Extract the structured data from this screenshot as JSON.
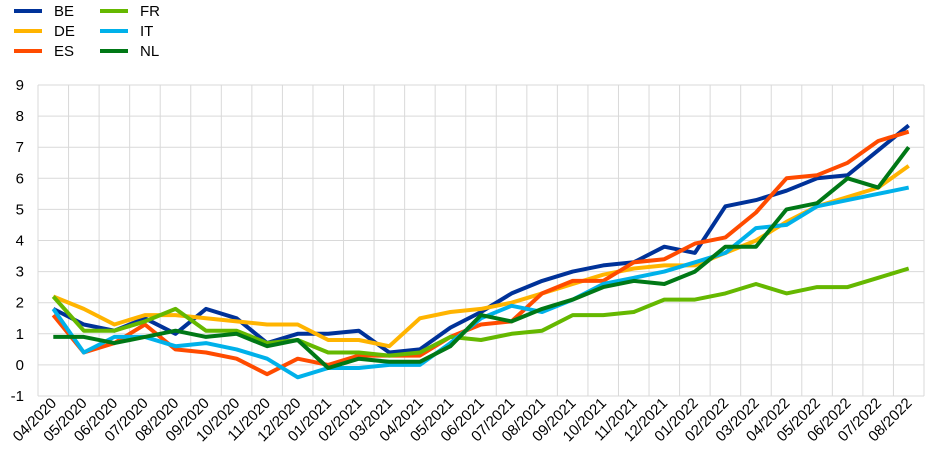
{
  "chart_data": {
    "type": "line",
    "title": "",
    "xlabel": "",
    "ylabel": "",
    "ylim": [
      -1,
      9
    ],
    "yticks": [
      -1,
      0,
      1,
      2,
      3,
      4,
      5,
      6,
      7,
      8,
      9
    ],
    "grid": true,
    "legend_position": "top-left",
    "categories": [
      "04/2020",
      "05/2020",
      "06/2020",
      "07/2020",
      "08/2020",
      "09/2020",
      "10/2020",
      "11/2020",
      "12/2020",
      "01/2021",
      "02/2021",
      "03/2021",
      "04/2021",
      "05/2021",
      "06/2021",
      "07/2021",
      "08/2021",
      "09/2021",
      "10/2021",
      "11/2021",
      "12/2021",
      "01/2022",
      "02/2022",
      "03/2022",
      "04/2022",
      "05/2022",
      "06/2022",
      "07/2022",
      "08/2022"
    ],
    "series": [
      {
        "name": "BE",
        "color": "#003299",
        "values": [
          1.8,
          1.3,
          1.1,
          1.5,
          1.0,
          1.8,
          1.5,
          0.7,
          1.0,
          1.0,
          1.1,
          0.4,
          0.5,
          1.2,
          1.7,
          2.3,
          2.7,
          3.0,
          3.2,
          3.3,
          3.8,
          3.6,
          5.1,
          5.3,
          5.6,
          6.0,
          6.1,
          6.9,
          7.7
        ]
      },
      {
        "name": "DE",
        "color": "#FFB400",
        "values": [
          2.2,
          1.8,
          1.3,
          1.6,
          1.6,
          1.5,
          1.4,
          1.3,
          1.3,
          0.8,
          0.8,
          0.6,
          1.5,
          1.7,
          1.8,
          2.0,
          2.3,
          2.6,
          2.9,
          3.1,
          3.2,
          3.2,
          3.6,
          4.0,
          4.6,
          5.1,
          5.4,
          5.7,
          6.4
        ]
      },
      {
        "name": "ES",
        "color": "#FF4B00",
        "values": [
          1.6,
          0.4,
          0.7,
          1.3,
          0.5,
          0.4,
          0.2,
          -0.3,
          0.2,
          0.0,
          0.3,
          0.3,
          0.3,
          0.9,
          1.3,
          1.4,
          2.3,
          2.7,
          2.7,
          3.3,
          3.4,
          3.9,
          4.1,
          4.9,
          6.0,
          6.1,
          6.5,
          7.2,
          7.5
        ]
      },
      {
        "name": "FR",
        "color": "#65B800",
        "values": [
          2.2,
          1.1,
          1.1,
          1.4,
          1.8,
          1.1,
          1.1,
          0.7,
          0.8,
          0.4,
          0.4,
          0.3,
          0.4,
          0.9,
          0.8,
          1.0,
          1.1,
          1.6,
          1.6,
          1.7,
          2.1,
          2.1,
          2.3,
          2.6,
          2.3,
          2.5,
          2.5,
          2.8,
          3.1
        ]
      },
      {
        "name": "IT",
        "color": "#00B1EA",
        "values": [
          1.8,
          0.4,
          0.9,
          0.9,
          0.6,
          0.7,
          0.5,
          0.2,
          -0.4,
          -0.1,
          -0.1,
          0.0,
          0.0,
          0.7,
          1.5,
          1.9,
          1.7,
          2.1,
          2.6,
          2.8,
          3.0,
          3.3,
          3.6,
          4.4,
          4.5,
          5.1,
          5.3,
          5.5,
          5.7
        ]
      },
      {
        "name": "NL",
        "color": "#007816",
        "values": [
          0.9,
          0.9,
          0.7,
          0.9,
          1.1,
          0.9,
          1.0,
          0.6,
          0.8,
          -0.1,
          0.2,
          0.1,
          0.1,
          0.6,
          1.6,
          1.4,
          1.8,
          2.1,
          2.5,
          2.7,
          2.6,
          3.0,
          3.8,
          3.8,
          5.0,
          5.2,
          6.0,
          5.7,
          7.0
        ]
      }
    ]
  }
}
